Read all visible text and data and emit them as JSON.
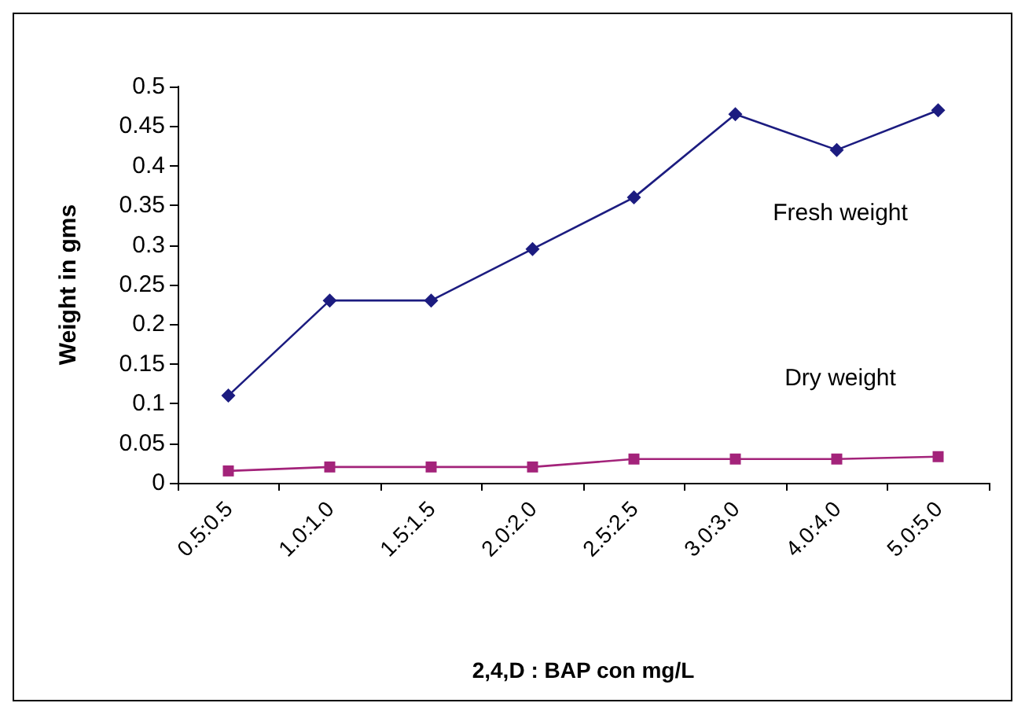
{
  "chart_data": {
    "type": "line",
    "xlabel": "2,4,D : BAP con mg/L",
    "ylabel": "Weight in gms",
    "categories": [
      "0.5:0.5",
      "1.0:1.0",
      "1.5:1.5",
      "2.0:2.0",
      "2.5:2.5",
      "3.0:3.0",
      "4.0:4.0",
      "5.0:5.0"
    ],
    "series": [
      {
        "name": "Fresh weight",
        "color": "#1c1c80",
        "marker": "diamond",
        "values": [
          0.11,
          0.23,
          0.23,
          0.295,
          0.36,
          0.465,
          0.42,
          0.47
        ]
      },
      {
        "name": "Dry weight",
        "color": "#a3237a",
        "marker": "square",
        "values": [
          0.015,
          0.02,
          0.02,
          0.02,
          0.03,
          0.03,
          0.03,
          0.033
        ]
      }
    ],
    "ylim": [
      0,
      0.5
    ],
    "yticks": [
      0,
      0.05,
      0.1,
      0.15,
      0.2,
      0.25,
      0.3,
      0.35,
      0.4,
      0.45,
      0.5
    ],
    "grid": false,
    "legend": false
  }
}
